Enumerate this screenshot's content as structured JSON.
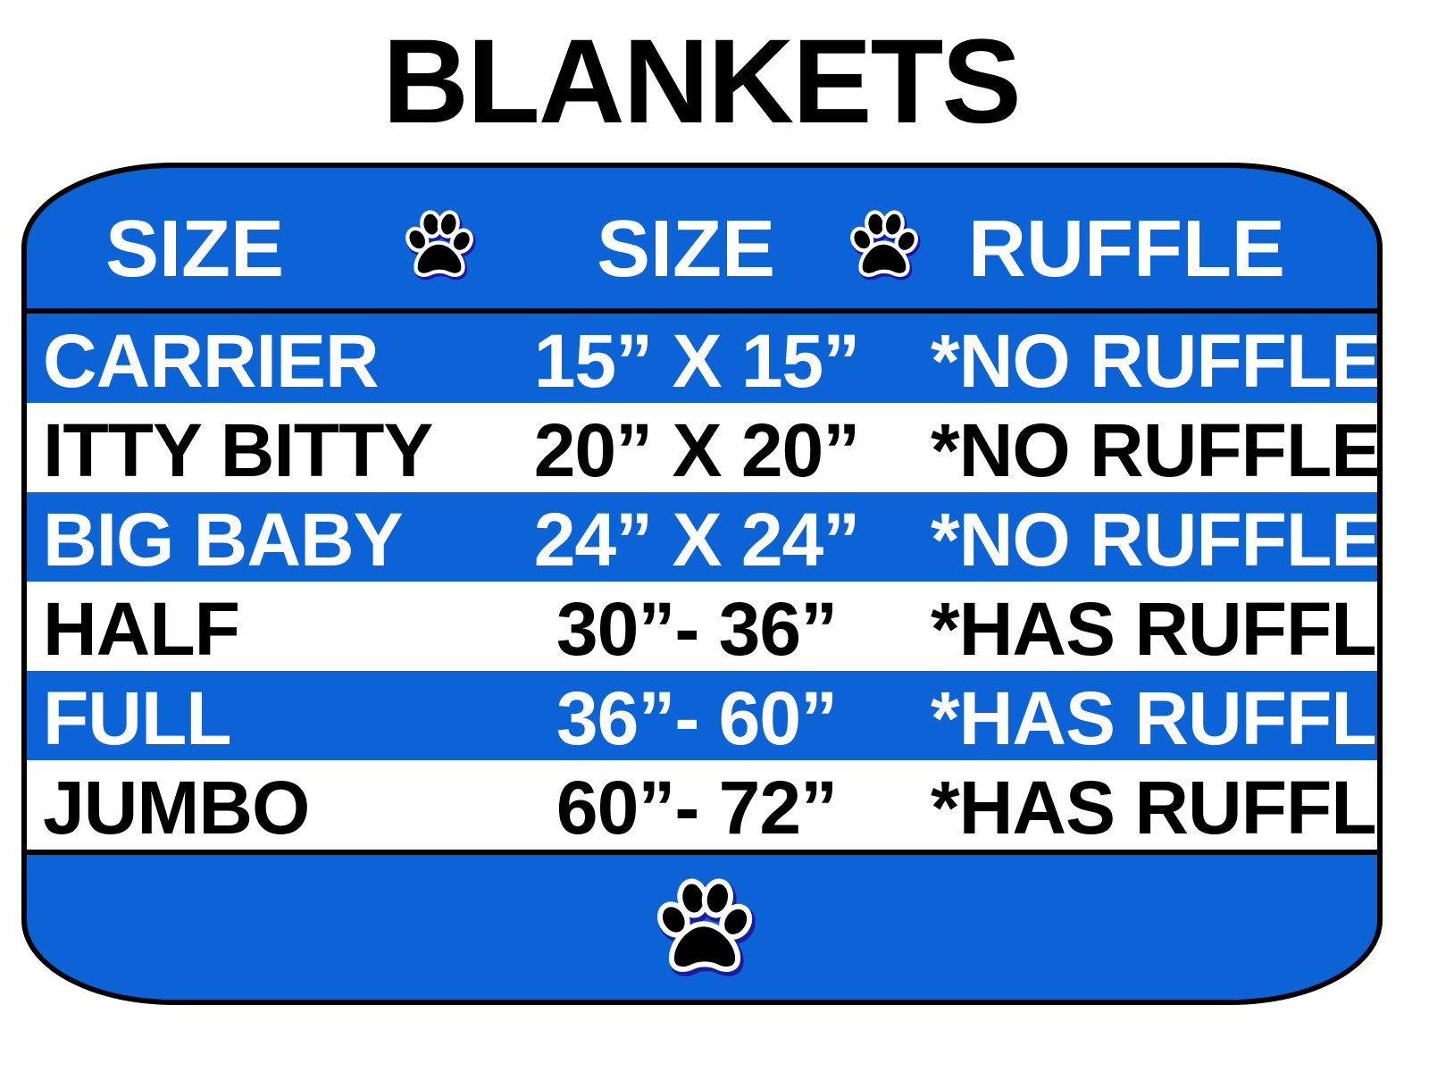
{
  "title": "BLANKETS",
  "colors": {
    "accent": "#0b63d6",
    "text_dark": "#000000",
    "text_light": "#ffffff"
  },
  "header": {
    "col1": "SIZE",
    "col2": "SIZE",
    "col3": "RUFFLE",
    "icon": "paw-print-icon"
  },
  "rows": [
    {
      "name": "CARRIER",
      "size": "15” X 15”",
      "ruffle": "*NO RUFFLE",
      "style": "blue"
    },
    {
      "name": "ITTY BITTY",
      "size": "20” X 20”",
      "ruffle": "*NO RUFFLE",
      "style": "white"
    },
    {
      "name": "BIG BABY",
      "size": "24” X 24”",
      "ruffle": "*NO RUFFLE",
      "style": "blue"
    },
    {
      "name": "HALF",
      "size": "30”- 36”",
      "ruffle": "*HAS RUFFLE",
      "style": "white"
    },
    {
      "name": "FULL",
      "size": "36”- 60”",
      "ruffle": "*HAS RUFFLE",
      "style": "blue"
    },
    {
      "name": "JUMBO",
      "size": "60”- 72”",
      "ruffle": "*HAS RUFFLE",
      "style": "white"
    }
  ],
  "footer": {
    "icon": "paw-print-icon"
  }
}
